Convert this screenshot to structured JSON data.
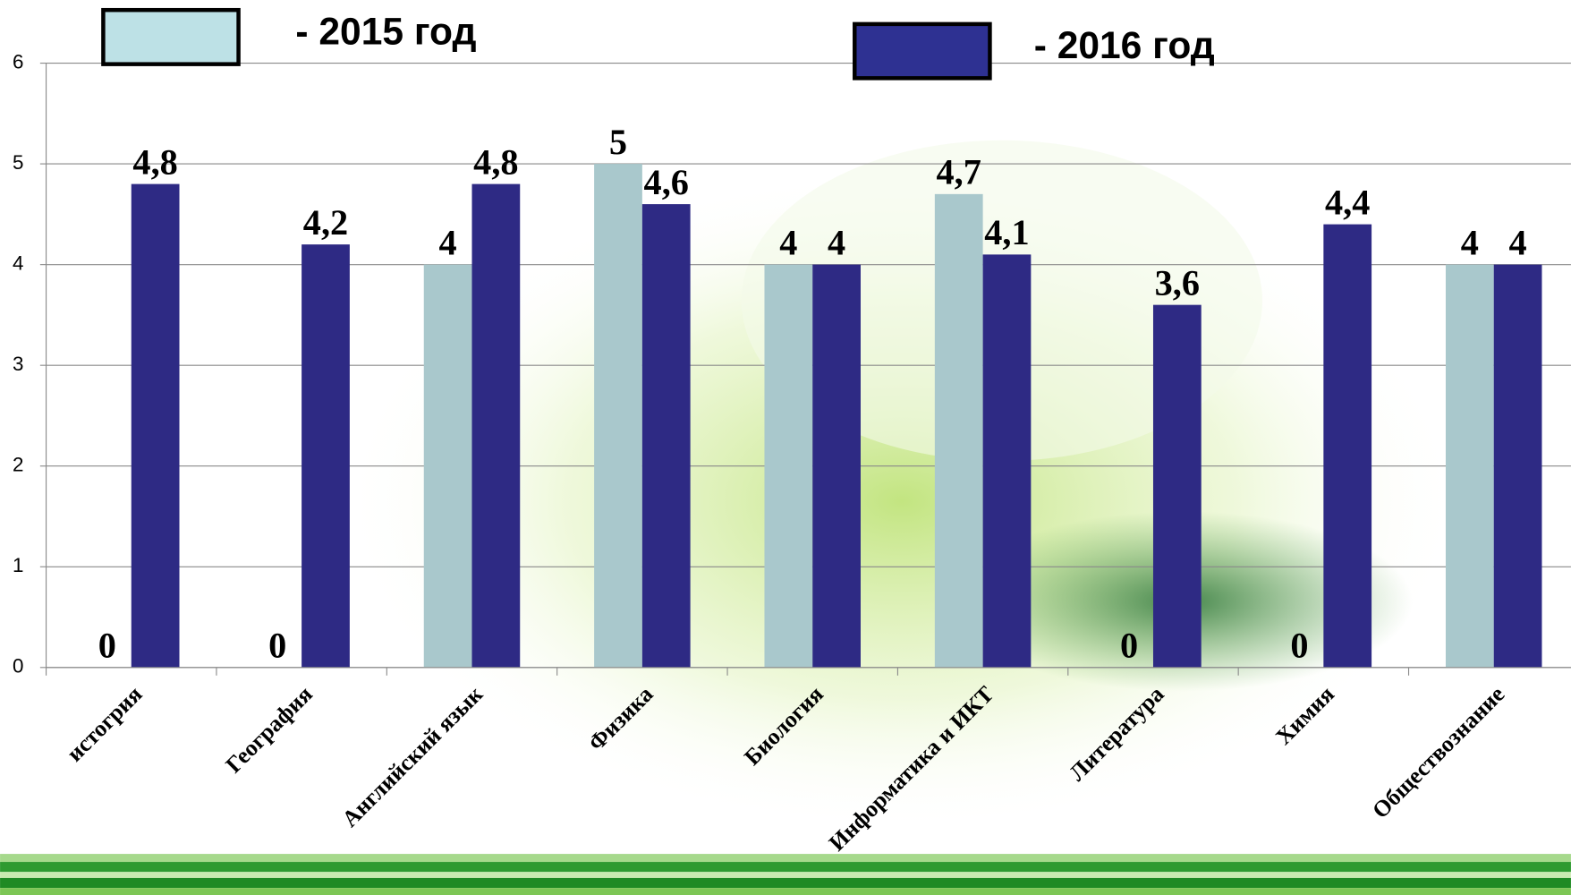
{
  "chart_data": {
    "type": "bar",
    "categories": [
      "истогрия",
      "География",
      "Английский язык",
      "Физика",
      "Биология",
      "Информатика и ИКТ",
      "Литература",
      "Химия",
      "Обществознание"
    ],
    "series": [
      {
        "name": "- 2015 год",
        "color": "#a9c8cc",
        "legend_color": "#bde1e6",
        "values": [
          0,
          0,
          4,
          5,
          4,
          4.7,
          0,
          0,
          4
        ],
        "value_labels": [
          "0",
          "0",
          "4",
          "5",
          "4",
          "4,7",
          "0",
          "0",
          "4"
        ]
      },
      {
        "name": "- 2016 год",
        "color": "#2e2a84",
        "legend_color": "#2e3192",
        "values": [
          4.8,
          4.2,
          4.8,
          4.6,
          4,
          4.1,
          3.6,
          4.4,
          4
        ],
        "value_labels": [
          "4,8",
          "4,2",
          "4,8",
          "4,6",
          "4",
          "4,1",
          "3,6",
          "4,4",
          "4"
        ]
      }
    ],
    "ylim": [
      0,
      6
    ],
    "yticks": [
      0,
      1,
      2,
      3,
      4,
      5,
      6
    ],
    "grid": true
  }
}
